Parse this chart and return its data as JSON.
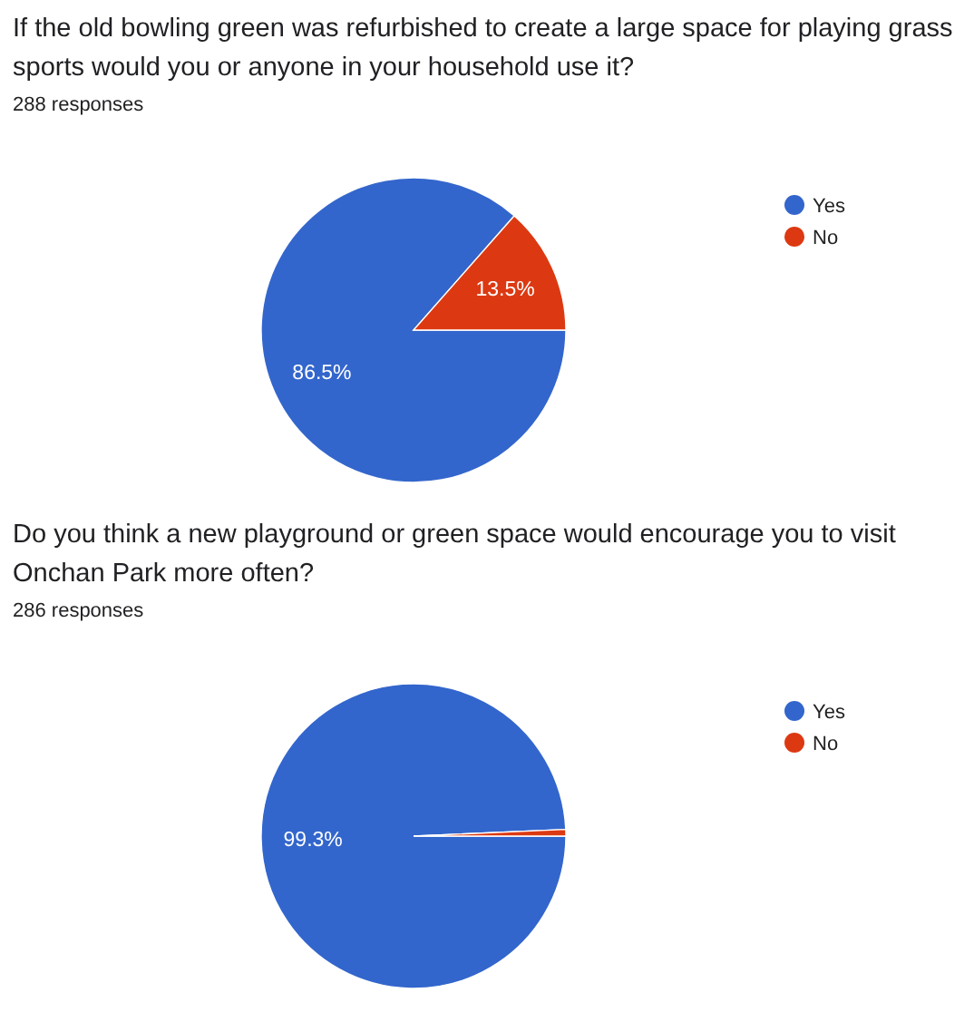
{
  "chart_data": [
    {
      "type": "pie",
      "title": "If the old bowling green was refurbished to create a large space for playing grass sports would you or anyone in your household use it?",
      "subtitle": "288 responses",
      "categories": [
        "Yes",
        "No"
      ],
      "values": [
        86.5,
        13.5
      ],
      "colors": [
        "#3366cc",
        "#dc3912"
      ],
      "value_labels": [
        "86.5%",
        "13.5%"
      ],
      "legend": "top right"
    },
    {
      "type": "pie",
      "title": "Do you think a new playground or green space would encourage you to visit Onchan Park more often?",
      "subtitle": "286 responses",
      "categories": [
        "Yes",
        "No"
      ],
      "values": [
        99.3,
        0.7
      ],
      "colors": [
        "#3366cc",
        "#dc3912"
      ],
      "value_labels": [
        "99.3%",
        null
      ],
      "legend": "top right"
    }
  ]
}
